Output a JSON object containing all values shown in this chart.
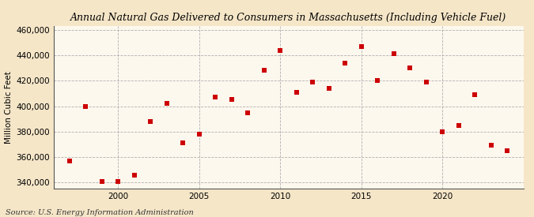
{
  "title": "Annual Natural Gas Delivered to Consumers in Massachusetts (Including Vehicle Fuel)",
  "ylabel": "Million Cubic Feet",
  "source": "Source: U.S. Energy Information Administration",
  "background_color": "#f5e6c8",
  "plot_background_color": "#fdf8ee",
  "marker_color": "#cc0000",
  "marker": "s",
  "marker_size": 5,
  "xlim": [
    1996.0,
    2025.0
  ],
  "ylim": [
    335000,
    463000
  ],
  "xticks": [
    2000,
    2005,
    2010,
    2015,
    2020
  ],
  "yticks": [
    340000,
    360000,
    380000,
    400000,
    420000,
    440000,
    460000
  ],
  "ytick_labels": [
    "340,000",
    "360,000",
    "380,000",
    "400,000",
    "420,000",
    "440,000",
    "460,000"
  ],
  "data": {
    "1997": 357000,
    "1998": 400000,
    "1999": 341000,
    "2000": 341000,
    "2001": 346000,
    "2002": 388000,
    "2003": 402000,
    "2004": 371000,
    "2005": 378000,
    "2006": 407000,
    "2007": 405000,
    "2008": 395000,
    "2009": 428000,
    "2010": 444000,
    "2011": 411000,
    "2012": 419000,
    "2013": 414000,
    "2014": 434000,
    "2015": 447000,
    "2016": 420000,
    "2017": 441000,
    "2018": 430000,
    "2019": 419000,
    "2020": 380000,
    "2021": 385000,
    "2022": 409000,
    "2023": 369000,
    "2024": 365000
  },
  "title_fontsize": 9,
  "tick_fontsize": 7.5,
  "ylabel_fontsize": 7.5,
  "source_fontsize": 7
}
